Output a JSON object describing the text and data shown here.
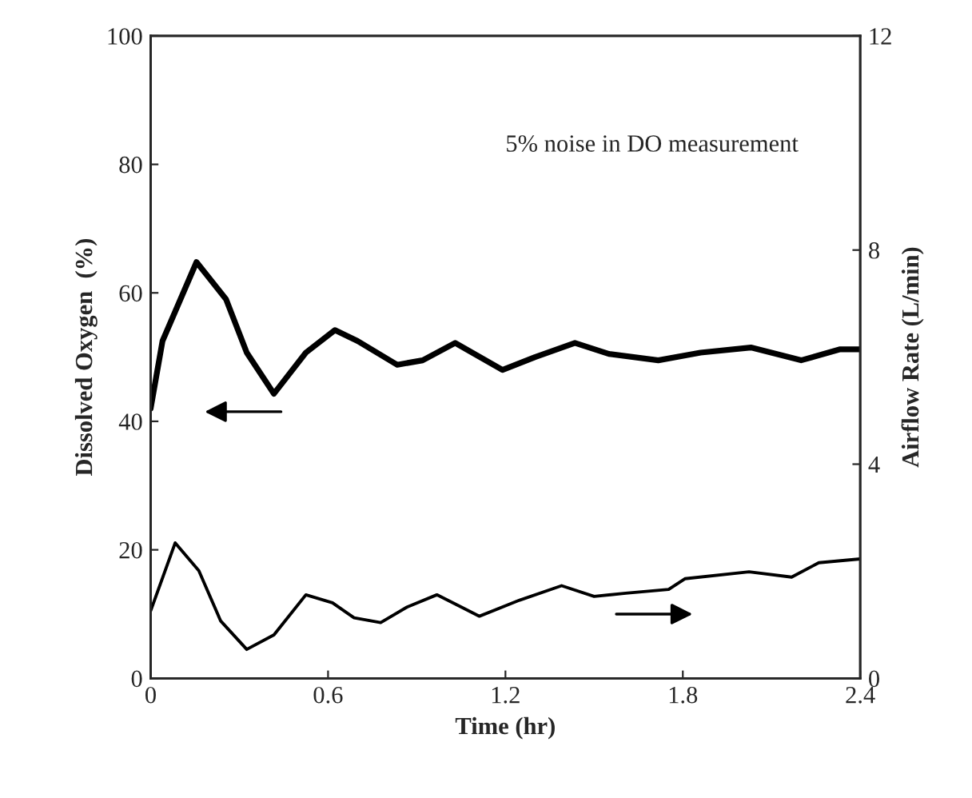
{
  "chart_data": {
    "type": "line",
    "xlabel": "Time (hr)",
    "ylabel": "Dissolved Oxygen  (%)",
    "y2label": "Airflow Rate (L/min)",
    "annotations": [
      "5% noise in DO measurement"
    ],
    "xlim": [
      0,
      2.4
    ],
    "xticks": [
      0,
      0.6,
      1.2,
      1.8,
      2.4
    ],
    "ylim": [
      0,
      100
    ],
    "yticks": [
      0,
      20,
      40,
      60,
      80,
      100
    ],
    "y2lim": [
      0,
      12
    ],
    "y2ticks": [
      0,
      4,
      8,
      12
    ],
    "grid": false,
    "legend": false,
    "marker": "none",
    "line_style": "solid",
    "series": [
      {
        "color": "#000000",
        "x": [
          0,
          0.04,
          0.155,
          0.255,
          0.325,
          0.417,
          0.525,
          0.623,
          0.7,
          0.834,
          0.92,
          1.03,
          1.19,
          1.3,
          1.435,
          1.55,
          1.717,
          1.86,
          2.03,
          2.2,
          2.33,
          2.4
        ],
        "values": [
          42,
          52.5,
          64.8,
          59,
          50.7,
          44.3,
          50.7,
          54.2,
          52.5,
          48.8,
          49.5,
          52.2,
          48,
          50,
          52.2,
          50.5,
          49.5,
          50.7,
          51.5,
          49.5,
          51.2,
          51.2
        ]
      },
      {
        "color": "#000000",
        "axis": "y2",
        "x": [
          0,
          0.083,
          0.163,
          0.237,
          0.325,
          0.417,
          0.525,
          0.615,
          0.688,
          0.778,
          0.867,
          0.968,
          1.112,
          1.248,
          1.39,
          1.5,
          1.607,
          1.752,
          1.807,
          2.024,
          2.168,
          2.26,
          2.4
        ],
        "values": [
          1.26,
          2.53,
          2.01,
          1.07,
          0.54,
          0.81,
          1.56,
          1.41,
          1.13,
          1.04,
          1.33,
          1.56,
          1.16,
          1.46,
          1.73,
          1.53,
          1.59,
          1.66,
          1.86,
          1.99,
          1.89,
          2.16,
          2.23
        ]
      }
    ]
  }
}
